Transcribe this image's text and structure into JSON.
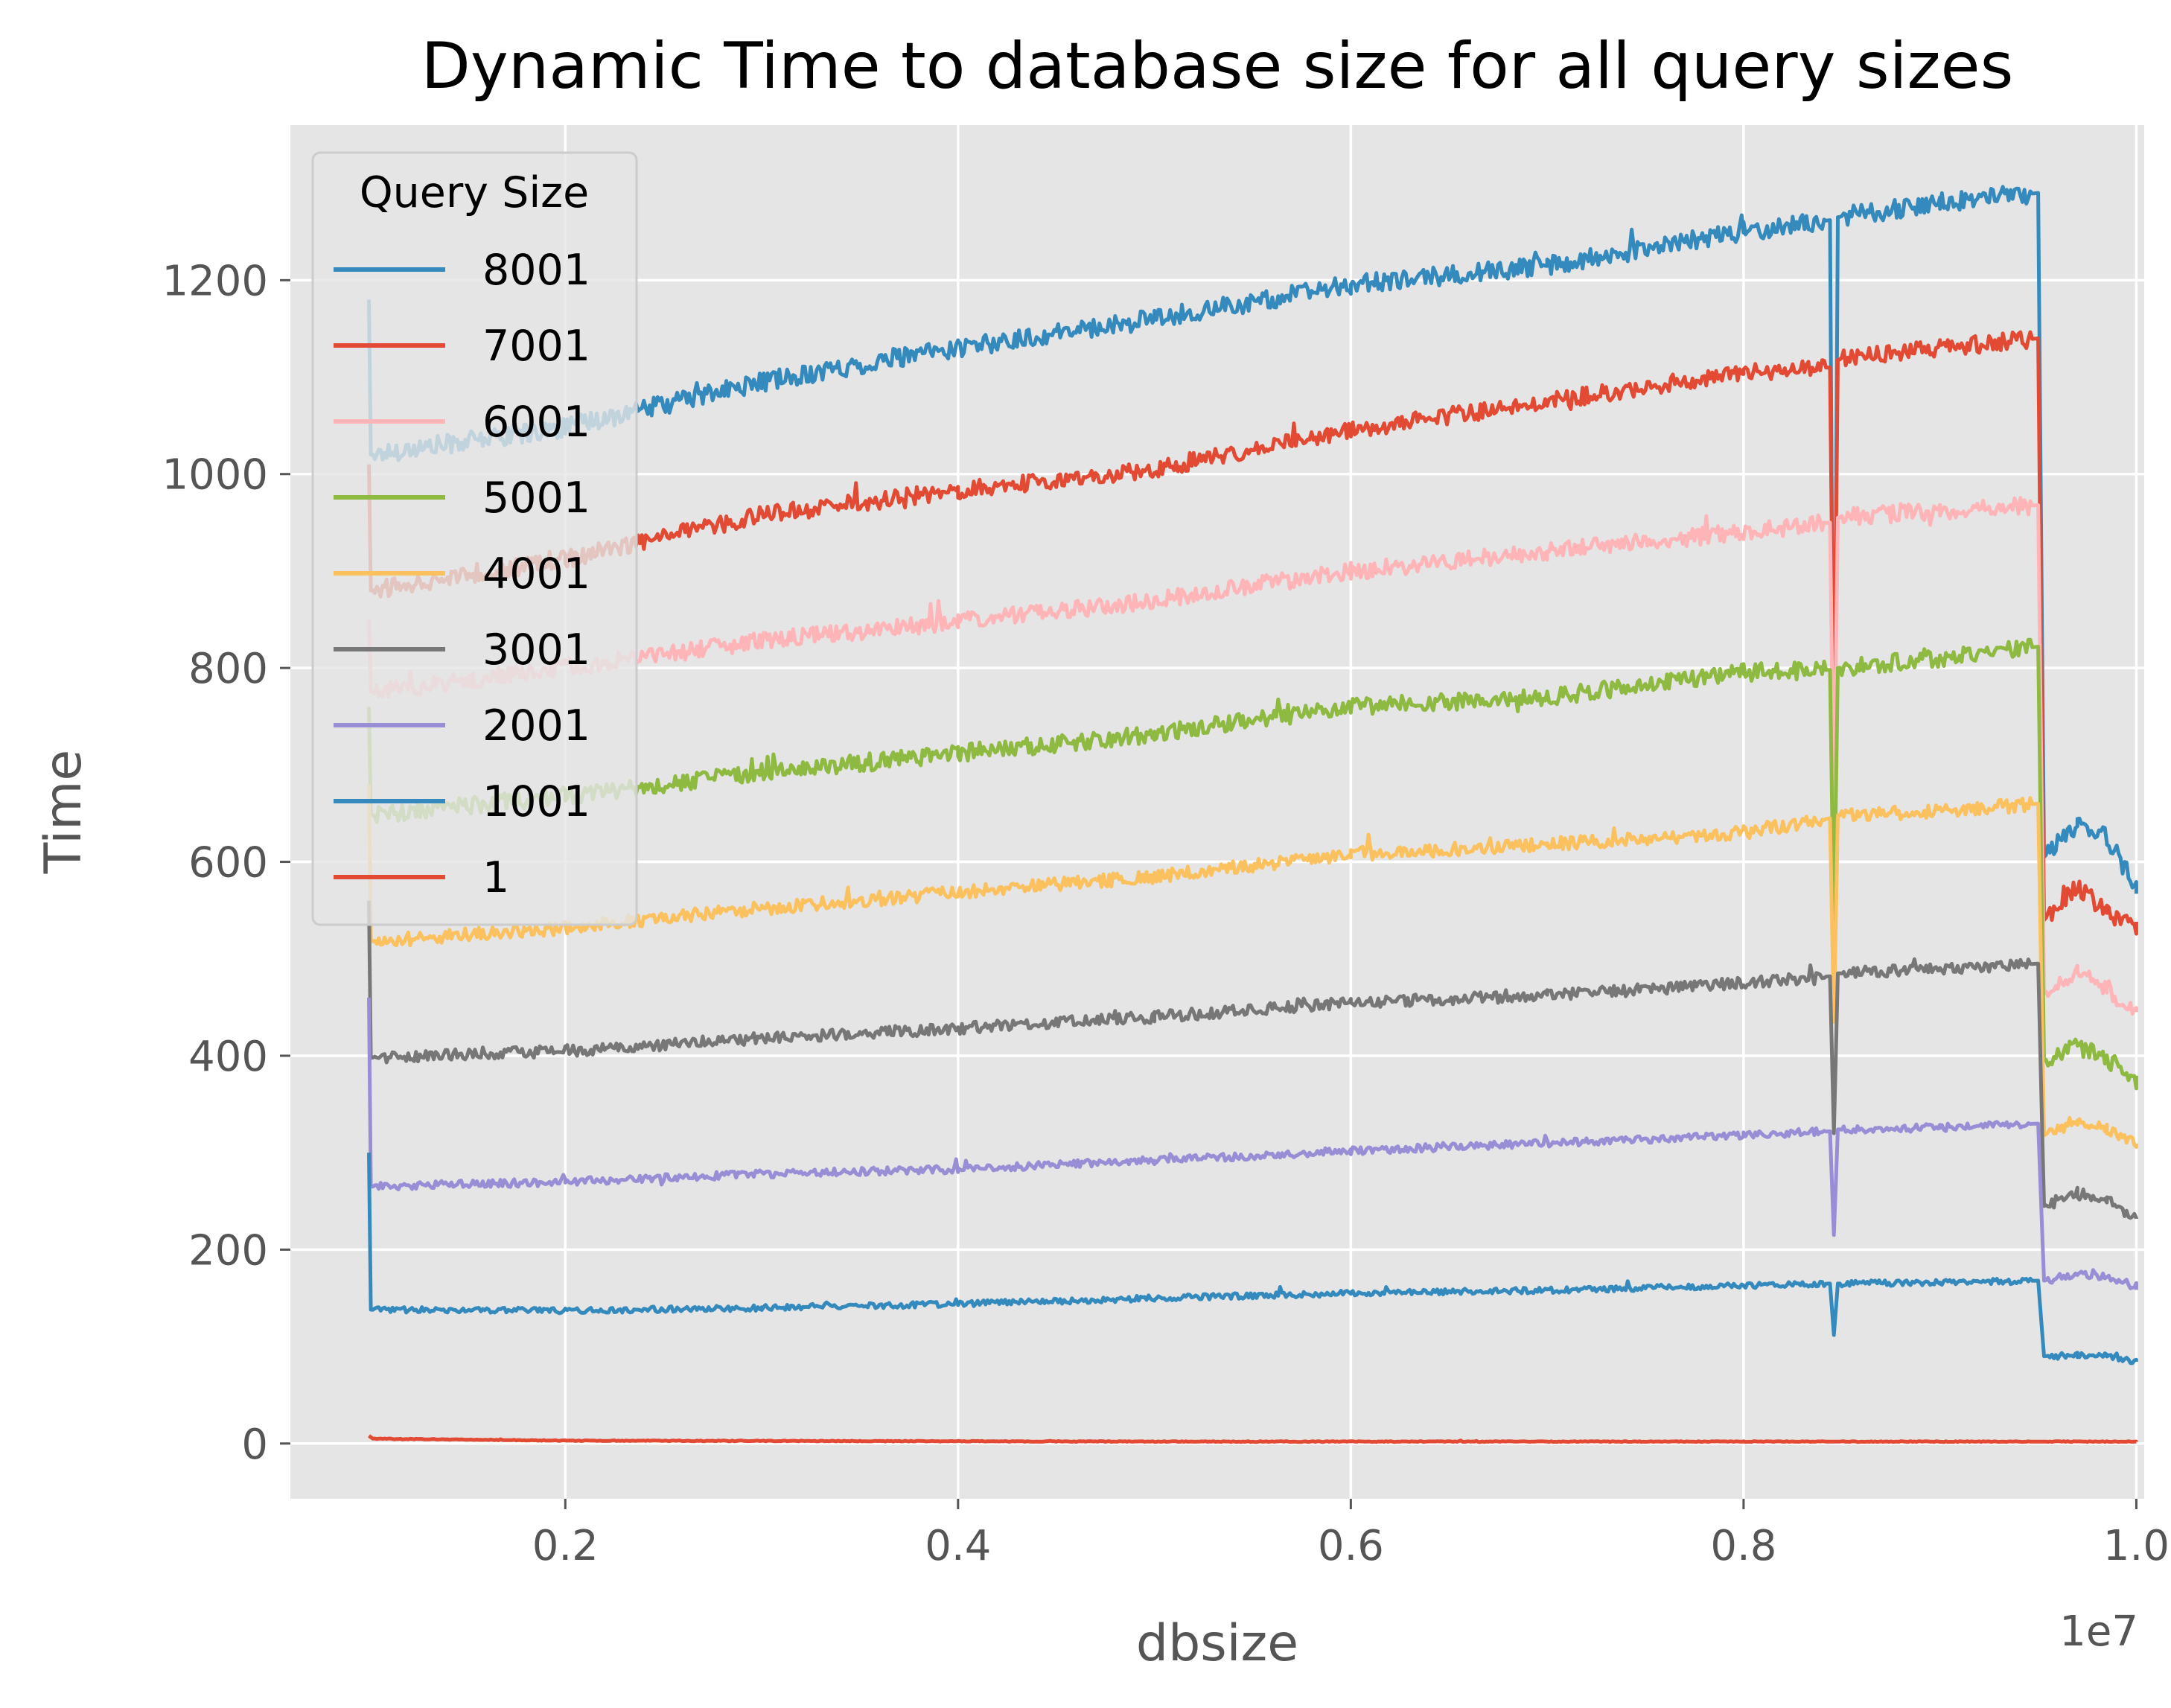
{
  "chart_data": {
    "type": "line",
    "title": "Dynamic Time to database size for all query sizes",
    "xlabel": "dbsize",
    "ylabel": "Time",
    "x_offset_label": "1e7",
    "xlim": [
      0.06,
      1.004
    ],
    "ylim": [
      -57,
      1360
    ],
    "x_ticks": [
      0.2,
      0.4,
      0.6,
      0.8,
      1.0
    ],
    "x_tick_labels": [
      "0.2",
      "0.4",
      "0.6",
      "0.8",
      "1.0"
    ],
    "y_ticks": [
      0,
      200,
      400,
      600,
      800,
      1000,
      1200
    ],
    "y_tick_labels": [
      "0",
      "200",
      "400",
      "600",
      "800",
      "1000",
      "1200"
    ],
    "grid": true,
    "legend_title": "Query Size",
    "legend_position": "upper left",
    "x_range": [
      0.1,
      1.0
    ],
    "drop_points": [
      0.846,
      0.951
    ],
    "series": [
      {
        "name": "8001",
        "color": "#348ABD",
        "anchors": [
          [
            0.1,
            1180
          ],
          [
            0.101,
            1020
          ],
          [
            0.2,
            1048
          ],
          [
            0.3,
            1095
          ],
          [
            0.4,
            1130
          ],
          [
            0.5,
            1160
          ],
          [
            0.6,
            1195
          ],
          [
            0.7,
            1215
          ],
          [
            0.8,
            1250
          ],
          [
            0.844,
            1262
          ],
          [
            0.846,
            620
          ],
          [
            0.848,
            1265
          ],
          [
            0.9,
            1280
          ],
          [
            0.95,
            1290
          ],
          [
            0.953,
            605
          ],
          [
            0.97,
            640
          ],
          [
            0.985,
            625
          ],
          [
            1.0,
            572
          ]
        ],
        "noise": 10
      },
      {
        "name": "7001",
        "color": "#E24A33",
        "anchors": [
          [
            0.1,
            1010
          ],
          [
            0.101,
            880
          ],
          [
            0.2,
            912
          ],
          [
            0.3,
            958
          ],
          [
            0.4,
            983
          ],
          [
            0.5,
            1005
          ],
          [
            0.6,
            1045
          ],
          [
            0.7,
            1075
          ],
          [
            0.8,
            1105
          ],
          [
            0.844,
            1110
          ],
          [
            0.846,
            730
          ],
          [
            0.848,
            1118
          ],
          [
            0.9,
            1130
          ],
          [
            0.95,
            1140
          ],
          [
            0.953,
            540
          ],
          [
            0.97,
            575
          ],
          [
            0.985,
            548
          ],
          [
            1.0,
            530
          ]
        ],
        "noise": 9
      },
      {
        "name": "6001",
        "color": "#FFB5B8",
        "anchors": [
          [
            0.1,
            850
          ],
          [
            0.101,
            775
          ],
          [
            0.2,
            800
          ],
          [
            0.3,
            828
          ],
          [
            0.4,
            848
          ],
          [
            0.5,
            870
          ],
          [
            0.6,
            900
          ],
          [
            0.7,
            920
          ],
          [
            0.8,
            940
          ],
          [
            0.844,
            950
          ],
          [
            0.846,
            650
          ],
          [
            0.848,
            955
          ],
          [
            0.9,
            962
          ],
          [
            0.95,
            968
          ],
          [
            0.953,
            465
          ],
          [
            0.97,
            488
          ],
          [
            0.985,
            470
          ],
          [
            1.0,
            442
          ]
        ],
        "noise": 9
      },
      {
        "name": "5001",
        "color": "#8EBA42",
        "anchors": [
          [
            0.1,
            760
          ],
          [
            0.101,
            648
          ],
          [
            0.2,
            668
          ],
          [
            0.3,
            692
          ],
          [
            0.4,
            712
          ],
          [
            0.5,
            732
          ],
          [
            0.6,
            760
          ],
          [
            0.7,
            770
          ],
          [
            0.8,
            795
          ],
          [
            0.844,
            798
          ],
          [
            0.846,
            530
          ],
          [
            0.848,
            800
          ],
          [
            0.9,
            810
          ],
          [
            0.95,
            822
          ],
          [
            0.953,
            395
          ],
          [
            0.97,
            410
          ],
          [
            0.985,
            398
          ],
          [
            1.0,
            372
          ]
        ],
        "noise": 9
      },
      {
        "name": "4001",
        "color": "#FBC15E",
        "anchors": [
          [
            0.1,
            680
          ],
          [
            0.101,
            518
          ],
          [
            0.2,
            532
          ],
          [
            0.3,
            552
          ],
          [
            0.4,
            568
          ],
          [
            0.5,
            585
          ],
          [
            0.6,
            608
          ],
          [
            0.7,
            618
          ],
          [
            0.8,
            630
          ],
          [
            0.844,
            645
          ],
          [
            0.846,
            435
          ],
          [
            0.848,
            648
          ],
          [
            0.9,
            652
          ],
          [
            0.95,
            660
          ],
          [
            0.953,
            318
          ],
          [
            0.97,
            335
          ],
          [
            0.985,
            325
          ],
          [
            1.0,
            308
          ]
        ],
        "noise": 7
      },
      {
        "name": "3001",
        "color": "#777777",
        "anchors": [
          [
            0.1,
            560
          ],
          [
            0.101,
            398
          ],
          [
            0.2,
            405
          ],
          [
            0.3,
            418
          ],
          [
            0.4,
            428
          ],
          [
            0.5,
            440
          ],
          [
            0.6,
            455
          ],
          [
            0.7,
            462
          ],
          [
            0.8,
            475
          ],
          [
            0.844,
            482
          ],
          [
            0.846,
            320
          ],
          [
            0.848,
            485
          ],
          [
            0.9,
            490
          ],
          [
            0.95,
            495
          ],
          [
            0.953,
            245
          ],
          [
            0.97,
            258
          ],
          [
            0.985,
            250
          ],
          [
            1.0,
            232
          ]
        ],
        "noise": 6
      },
      {
        "name": "2001",
        "color": "#988ED5",
        "anchors": [
          [
            0.1,
            460
          ],
          [
            0.101,
            265
          ],
          [
            0.2,
            270
          ],
          [
            0.3,
            278
          ],
          [
            0.4,
            283
          ],
          [
            0.5,
            292
          ],
          [
            0.6,
            302
          ],
          [
            0.7,
            310
          ],
          [
            0.8,
            318
          ],
          [
            0.844,
            322
          ],
          [
            0.846,
            215
          ],
          [
            0.848,
            324
          ],
          [
            0.9,
            326
          ],
          [
            0.95,
            330
          ],
          [
            0.953,
            168
          ],
          [
            0.97,
            175
          ],
          [
            0.985,
            172
          ],
          [
            1.0,
            162
          ]
        ],
        "noise": 4
      },
      {
        "name": "1001",
        "color": "#348ABD",
        "anchors": [
          [
            0.1,
            300
          ],
          [
            0.101,
            138
          ],
          [
            0.2,
            137
          ],
          [
            0.3,
            140
          ],
          [
            0.4,
            144
          ],
          [
            0.5,
            150
          ],
          [
            0.6,
            155
          ],
          [
            0.7,
            158
          ],
          [
            0.8,
            163
          ],
          [
            0.844,
            165
          ],
          [
            0.846,
            112
          ],
          [
            0.848,
            165
          ],
          [
            0.9,
            166
          ],
          [
            0.95,
            168
          ],
          [
            0.953,
            90
          ],
          [
            0.97,
            92
          ],
          [
            0.985,
            90
          ],
          [
            1.0,
            85
          ]
        ],
        "noise": 3
      },
      {
        "name": "1",
        "color": "#E24A33",
        "anchors": [
          [
            0.1,
            8
          ],
          [
            0.102,
            5
          ],
          [
            0.2,
            3
          ],
          [
            0.5,
            2
          ],
          [
            0.8,
            2
          ],
          [
            1.0,
            2
          ]
        ],
        "noise": 0.4
      }
    ]
  }
}
